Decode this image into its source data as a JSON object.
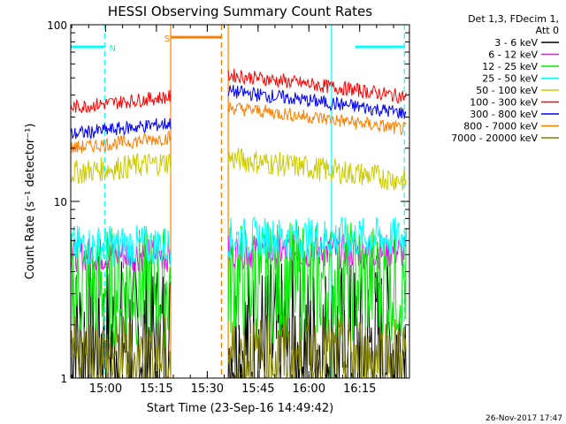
{
  "chart_data": {
    "type": "line",
    "title": "HESSI Observing Summary Count Rates",
    "xlabel": "Start Time (23-Sep-16 14:49:42)",
    "ylabel": "Count Rate (s⁻¹ detector⁻¹)",
    "y_scale": "log",
    "ylim": [
      1,
      100
    ],
    "y_ticks": [
      {
        "value": 1,
        "label": "1"
      },
      {
        "value": 10,
        "label": "10"
      },
      {
        "value": 100,
        "label": "100"
      }
    ],
    "xlim_minutes_after_start": [
      0,
      100
    ],
    "x_ticks": [
      {
        "minutes": 10.3,
        "label": "15:00"
      },
      {
        "minutes": 25.3,
        "label": "15:15"
      },
      {
        "minutes": 40.3,
        "label": "15:30"
      },
      {
        "minutes": 55.3,
        "label": "15:45"
      },
      {
        "minutes": 70.3,
        "label": "16:00"
      },
      {
        "minutes": 85.3,
        "label": "16:15"
      }
    ],
    "legend_header": [
      "Det 1,3, FDecim 1,",
      "Att 0"
    ],
    "legend_position": "right",
    "segments": [
      [
        0,
        29.5
      ],
      [
        46.5,
        99
      ]
    ],
    "series": [
      {
        "name": "3 - 6 keV",
        "color": "#000000",
        "values": [
          1.6,
          1.5
        ],
        "noise": 0.5
      },
      {
        "name": "6 - 12 keV",
        "color": "#ff00ff",
        "values": [
          5.0,
          5.2
        ],
        "noise": 0.1
      },
      {
        "name": "12 - 25 keV",
        "color": "#00ee00",
        "values": [
          3.3,
          3.5
        ],
        "noise": 0.35
      },
      {
        "name": "25 - 50 keV",
        "color": "#00ffff",
        "values": [
          5.6,
          6.2
        ],
        "noise": 0.12
      },
      {
        "name": "50 - 100 keV",
        "color": "#cccc00",
        "values": [
          14.5,
          17.5
        ],
        "noise": 0.07
      },
      {
        "name": "100 - 300 keV",
        "color": "#ff0000",
        "values": [
          34,
          52
        ],
        "noise": 0.04
      },
      {
        "name": "300 - 800 keV",
        "color": "#0000ff",
        "values": [
          24,
          42
        ],
        "noise": 0.04
      },
      {
        "name": "800 - 7000 keV",
        "color": "#ff7f00",
        "values": [
          20,
          34
        ],
        "noise": 0.04
      },
      {
        "name": "7000 - 20000 keV",
        "color": "#808000",
        "values": [
          1.3,
          1.3
        ],
        "noise": 0.25
      }
    ],
    "flag_bars": [
      {
        "label": "N",
        "color": "#00ffff",
        "start": 0,
        "end": 10,
        "level": 75
      },
      {
        "label": "",
        "color": "#00ffff",
        "start": 84,
        "end": 98.5,
        "level": 75
      },
      {
        "label": "S",
        "color": "#ff7f00",
        "start": 29.5,
        "end": 44.5,
        "level": 85
      }
    ],
    "event_lines": [
      {
        "color": "#00ffff",
        "minutes": 10,
        "style": "dashed"
      },
      {
        "color": "#ff7f00",
        "minutes": 29.5,
        "style": "solid"
      },
      {
        "color": "#ff7f00",
        "minutes": 44.5,
        "style": "dashed"
      },
      {
        "color": "#ff7f00",
        "minutes": 46.5,
        "style": "solid"
      },
      {
        "color": "#00ffff",
        "minutes": 77,
        "style": "solid"
      },
      {
        "color": "#00ffff",
        "minutes": 98.5,
        "style": "dashed"
      }
    ],
    "grid": false
  },
  "footer": {
    "timestamp": "26-Nov-2017 17:47"
  }
}
